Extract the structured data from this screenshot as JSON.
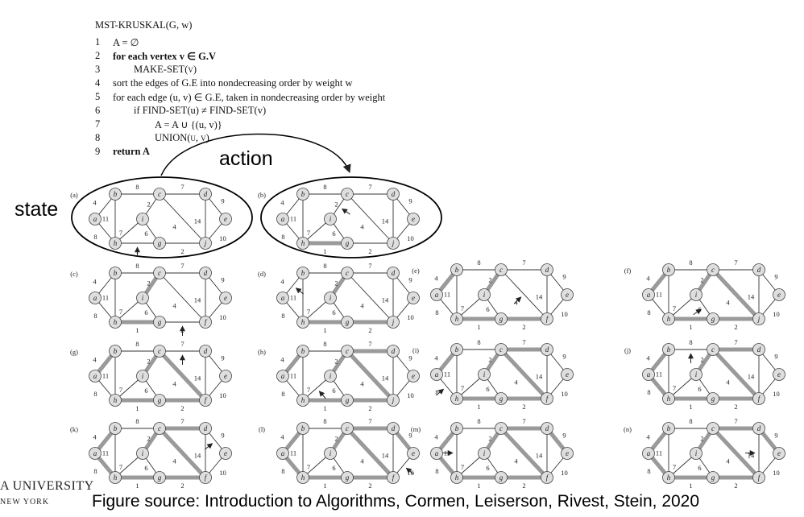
{
  "algorithm": {
    "title": "MST-KRUSKAL(G, w)",
    "lines": [
      {
        "no": "1",
        "text": "A = ∅"
      },
      {
        "no": "2",
        "text": "for each vertex v ∈ G.V"
      },
      {
        "no": "3",
        "text": "MAKE-SET(v)"
      },
      {
        "no": "4",
        "text": "sort the edges of G.E into nondecreasing order by weight w"
      },
      {
        "no": "5",
        "text": "for each edge (u, v) ∈ G.E, taken in nondecreasing order by weight"
      },
      {
        "no": "6",
        "text": "if FIND-SET(u) ≠ FIND-SET(v)"
      },
      {
        "no": "7",
        "text": "A = A ∪ {(u, v)}"
      },
      {
        "no": "8",
        "text": "UNION(u, v)"
      },
      {
        "no": "9",
        "text": "return A"
      }
    ]
  },
  "labels": {
    "state": "state",
    "action": "action"
  },
  "footer": "Figure source: Introduction to Algorithms, Cormen, Leiserson, Rivest, Stein, 2020",
  "logo": {
    "line1": "A UNIVERSITY",
    "line2": "NEW YORK"
  },
  "graph": {
    "nodes": [
      "a",
      "b",
      "c",
      "d",
      "e",
      "f",
      "g",
      "h",
      "i"
    ],
    "edges": [
      {
        "u": "a",
        "v": "b",
        "w": "4"
      },
      {
        "u": "b",
        "v": "c",
        "w": "8"
      },
      {
        "u": "c",
        "v": "d",
        "w": "7"
      },
      {
        "u": "d",
        "v": "e",
        "w": "9"
      },
      {
        "u": "e",
        "v": "f",
        "w": "10"
      },
      {
        "u": "d",
        "v": "f",
        "w": "14"
      },
      {
        "u": "c",
        "v": "f",
        "w": "4"
      },
      {
        "u": "f",
        "v": "g",
        "w": "2"
      },
      {
        "u": "g",
        "v": "h",
        "w": "1"
      },
      {
        "u": "h",
        "v": "a",
        "w": "8"
      },
      {
        "u": "b",
        "v": "h",
        "w": "11"
      },
      {
        "u": "h",
        "v": "i",
        "w": "7"
      },
      {
        "u": "i",
        "v": "c",
        "w": "2"
      },
      {
        "u": "i",
        "v": "g",
        "w": "6"
      }
    ],
    "panels": [
      {
        "label": "(a)",
        "tree": [],
        "arrow": "g-h",
        "last_node": "j"
      },
      {
        "label": "(b)",
        "tree": [
          "g-h"
        ],
        "arrow": "i-c",
        "last_node": "j"
      },
      {
        "label": "(c)",
        "tree": [
          "g-h",
          "i-c"
        ],
        "arrow": "f-g",
        "last_node": "f"
      },
      {
        "label": "(d)",
        "tree": [
          "g-h",
          "i-c",
          "f-g"
        ],
        "arrow": "a-b",
        "last_node": "j"
      },
      {
        "label": "(e)",
        "tree": [
          "g-h",
          "i-c",
          "f-g",
          "a-b"
        ],
        "arrow": "c-f",
        "last_node": "f"
      },
      {
        "label": "(f)",
        "tree": [
          "g-h",
          "i-c",
          "f-g",
          "a-b",
          "c-f"
        ],
        "arrow": "i-g",
        "last_node": "j"
      },
      {
        "label": "(g)",
        "tree": [
          "g-h",
          "i-c",
          "f-g",
          "a-b",
          "c-f"
        ],
        "arrow": "c-d",
        "last_node": "f"
      },
      {
        "label": "(h)",
        "tree": [
          "g-h",
          "i-c",
          "f-g",
          "a-b",
          "c-f",
          "c-d"
        ],
        "arrow": "h-i",
        "last_node": "j"
      },
      {
        "label": "(i)",
        "tree": [
          "g-h",
          "i-c",
          "f-g",
          "a-b",
          "c-f",
          "c-d"
        ],
        "arrow": "h-a",
        "last_node": "f"
      },
      {
        "label": "(j)",
        "tree": [
          "g-h",
          "i-c",
          "f-g",
          "a-b",
          "c-f",
          "c-d",
          "h-a"
        ],
        "arrow": "b-c",
        "last_node": "f"
      },
      {
        "label": "(k)",
        "tree": [
          "g-h",
          "i-c",
          "f-g",
          "a-b",
          "c-f",
          "c-d",
          "h-a"
        ],
        "arrow": "d-e",
        "last_node": "f"
      },
      {
        "label": "(l)",
        "tree": [
          "g-h",
          "i-c",
          "f-g",
          "a-b",
          "c-f",
          "c-d",
          "h-a",
          "d-e"
        ],
        "arrow": "e-f",
        "last_node": "f"
      },
      {
        "label": "(m)",
        "tree": [
          "g-h",
          "i-c",
          "f-g",
          "a-b",
          "c-f",
          "c-d",
          "h-a",
          "d-e"
        ],
        "arrow": "b-h",
        "last_node": "f"
      },
      {
        "label": "(n)",
        "tree": [
          "g-h",
          "i-c",
          "f-g",
          "a-b",
          "c-f",
          "c-d",
          "h-a",
          "d-e"
        ],
        "arrow": "d-f",
        "last_node": "f"
      }
    ]
  }
}
